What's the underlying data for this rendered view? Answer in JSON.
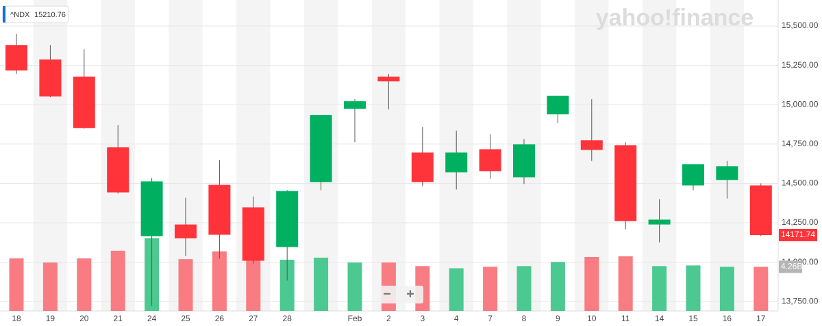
{
  "chart_data": {
    "type": "candlestick",
    "ticker": {
      "symbol": "^NDX",
      "price": 15210.76
    },
    "watermark": "yahoo!finance",
    "categories": [
      "18",
      "19",
      "20",
      "21",
      "24",
      "25",
      "26",
      "27",
      "28",
      null,
      "Feb",
      "2",
      "3",
      "4",
      "7",
      "8",
      "9",
      "10",
      "11",
      "14",
      "15",
      "16",
      "17"
    ],
    "open": [
      15378,
      15287,
      15178,
      14730,
      14165,
      14239,
      14491,
      14348,
      14096,
      14509,
      14974,
      15178,
      14696,
      14570,
      14717,
      14539,
      14939,
      14774,
      14743,
      14239,
      14487,
      14522,
      14487
    ],
    "high": [
      15448,
      15378,
      15352,
      14870,
      14535,
      14409,
      14648,
      14417,
      14457,
      14935,
      15035,
      15196,
      14857,
      14835,
      14813,
      14783,
      15057,
      15035,
      14761,
      14400,
      14622,
      14643,
      14500
    ],
    "low": [
      15196,
      15048,
      14848,
      14435,
      13722,
      14039,
      14022,
      13991,
      13883,
      14457,
      14761,
      14970,
      14483,
      14461,
      14530,
      14496,
      14883,
      14643,
      14209,
      14126,
      14457,
      14404,
      14165
    ],
    "close": [
      15217,
      15052,
      14852,
      14443,
      14513,
      14152,
      14174,
      14009,
      14452,
      14935,
      15022,
      15148,
      14509,
      14696,
      14578,
      14748,
      15057,
      14713,
      14261,
      14270,
      14622,
      14609,
      14171.74
    ],
    "volume": [
      5.07,
      4.67,
      5.07,
      5.81,
      7.03,
      5.0,
      5.75,
      5.14,
      4.94,
      5.14,
      4.67,
      4.67,
      4.33,
      4.12,
      4.26,
      4.33,
      4.73,
      5.21,
      5.27,
      4.33,
      4.39,
      4.26,
      4.26
    ],
    "volume_marker": {
      "value": 4.26,
      "label": "4.26B"
    },
    "last_price": 14171.74,
    "up_color": "#00b061",
    "down_color": "#ff333a",
    "volume_up_color": "#4cc990",
    "volume_down_color": "#f87c82",
    "ylim": [
      13690,
      15665
    ],
    "volume_ylim": [
      0,
      30
    ],
    "yticks": [
      {
        "value": 13750,
        "label": "13,750.00"
      },
      {
        "value": 14000,
        "label": "14,000.00"
      },
      {
        "value": 14250,
        "label": "14,250.00"
      },
      {
        "value": 14500,
        "label": "14,500.00"
      },
      {
        "value": 14750,
        "label": "14,750.00"
      },
      {
        "value": 15000,
        "label": "15,000.00"
      },
      {
        "value": 15250,
        "label": "15,250.00"
      },
      {
        "value": 15500,
        "label": "15,500.00"
      }
    ],
    "grid": true,
    "zoom_buttons": [
      "−",
      "+"
    ]
  }
}
